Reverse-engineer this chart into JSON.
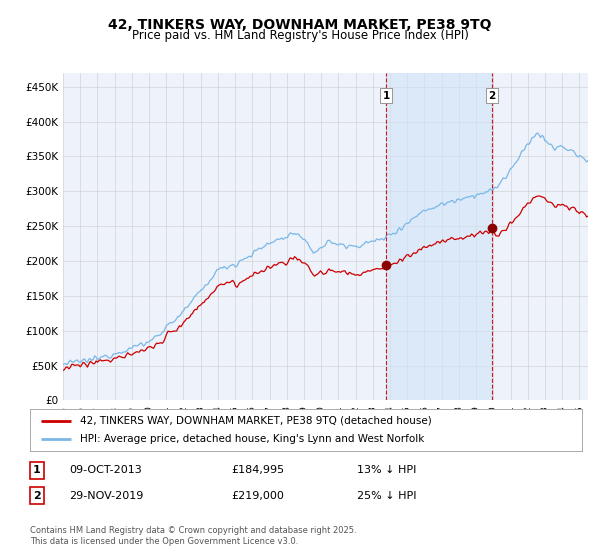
{
  "title": "42, TINKERS WAY, DOWNHAM MARKET, PE38 9TQ",
  "subtitle": "Price paid vs. HM Land Registry's House Price Index (HPI)",
  "ylabel_ticks": [
    "£0",
    "£50K",
    "£100K",
    "£150K",
    "£200K",
    "£250K",
    "£300K",
    "£350K",
    "£400K",
    "£450K"
  ],
  "ytick_values": [
    0,
    50000,
    100000,
    150000,
    200000,
    250000,
    300000,
    350000,
    400000,
    450000
  ],
  "ylim": [
    0,
    470000
  ],
  "xlim_start": 1995.0,
  "xlim_end": 2025.5,
  "hpi_color": "#7ab8e8",
  "price_color": "#cc0000",
  "marker_color": "#8b0000",
  "vline_color": "#cc0000",
  "purchase1_x": 2013.77,
  "purchase1_y": 184995,
  "purchase1_label": "1",
  "purchase1_date": "09-OCT-2013",
  "purchase1_price": "£184,995",
  "purchase1_note": "13% ↓ HPI",
  "purchase2_x": 2019.91,
  "purchase2_y": 219000,
  "purchase2_label": "2",
  "purchase2_date": "29-NOV-2019",
  "purchase2_price": "£219,000",
  "purchase2_note": "25% ↓ HPI",
  "legend_label1": "42, TINKERS WAY, DOWNHAM MARKET, PE38 9TQ (detached house)",
  "legend_label2": "HPI: Average price, detached house, King's Lynn and West Norfolk",
  "footer": "Contains HM Land Registry data © Crown copyright and database right 2025.\nThis data is licensed under the Open Government Licence v3.0.",
  "background_color": "#ffffff",
  "plot_background": "#eef2fb",
  "grid_color": "#cccccc",
  "span_color": "#d0e4f7"
}
